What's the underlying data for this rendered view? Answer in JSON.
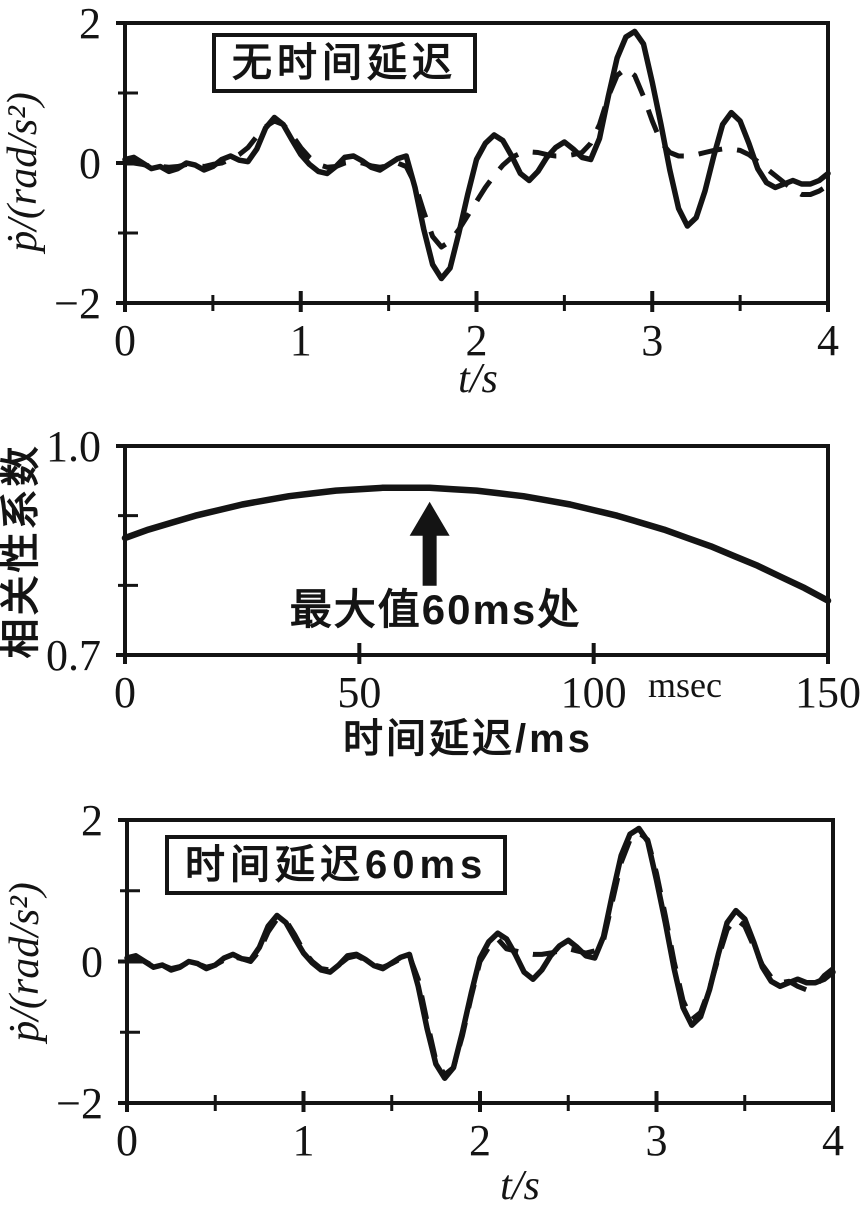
{
  "figure": {
    "background": "#ffffff",
    "ink": "#141414"
  },
  "chart_data": [
    {
      "id": "top-response",
      "type": "line",
      "title_box": "无时间延迟",
      "xlabel": "t/s",
      "ylabel": "ṗ/(rad/s²)",
      "xlim": [
        0,
        4
      ],
      "ylim": [
        -2,
        2
      ],
      "xticks": [
        {
          "v": 0,
          "label": "0"
        },
        {
          "v": 1,
          "label": "1"
        },
        {
          "v": 2,
          "label": "2"
        },
        {
          "v": 3,
          "label": "3"
        },
        {
          "v": 4,
          "label": "4"
        }
      ],
      "xticks_minor": [
        0.5,
        1.5,
        2.5,
        3.5
      ],
      "yticks": [
        {
          "v": 2,
          "label": "2"
        },
        {
          "v": 0,
          "label": "0"
        },
        {
          "v": -2,
          "label": "−2"
        }
      ],
      "yticks_minor": [
        1,
        -1
      ],
      "grid": false,
      "x_start": 0,
      "x_step": 0.05,
      "series": [
        {
          "name": "measured-response",
          "style": "solid",
          "values": [
            0.05,
            0.08,
            0.0,
            -0.08,
            -0.05,
            -0.12,
            -0.08,
            0.0,
            -0.03,
            -0.1,
            -0.05,
            0.05,
            0.1,
            0.04,
            0.02,
            0.2,
            0.5,
            0.65,
            0.55,
            0.33,
            0.12,
            -0.02,
            -0.12,
            -0.15,
            -0.05,
            0.08,
            0.1,
            0.03,
            -0.06,
            -0.1,
            -0.02,
            0.06,
            0.1,
            -0.35,
            -0.95,
            -1.45,
            -1.65,
            -1.5,
            -1.0,
            -0.45,
            0.05,
            0.28,
            0.4,
            0.32,
            0.1,
            -0.15,
            -0.25,
            -0.12,
            0.08,
            0.22,
            0.3,
            0.2,
            0.08,
            0.05,
            0.35,
            0.95,
            1.5,
            1.8,
            1.88,
            1.7,
            1.15,
            0.55,
            -0.1,
            -0.65,
            -0.9,
            -0.78,
            -0.4,
            0.1,
            0.55,
            0.72,
            0.6,
            0.28,
            -0.08,
            -0.28,
            -0.35,
            -0.3,
            -0.25,
            -0.3,
            -0.3,
            -0.25,
            -0.15
          ]
        },
        {
          "name": "model-estimate-no-delay",
          "style": "dashed",
          "values": [
            0.0,
            0.0,
            -0.02,
            -0.05,
            -0.05,
            -0.06,
            -0.05,
            -0.02,
            -0.03,
            -0.05,
            -0.02,
            0.0,
            0.05,
            0.12,
            0.22,
            0.38,
            0.52,
            0.6,
            0.55,
            0.4,
            0.22,
            0.08,
            -0.02,
            -0.06,
            -0.05,
            0.0,
            0.02,
            0.0,
            -0.04,
            -0.06,
            -0.04,
            0.0,
            -0.05,
            -0.3,
            -0.7,
            -1.05,
            -1.2,
            -1.12,
            -0.95,
            -0.75,
            -0.55,
            -0.35,
            -0.18,
            -0.03,
            0.08,
            0.14,
            0.16,
            0.15,
            0.12,
            0.1,
            0.1,
            0.12,
            0.15,
            0.28,
            0.55,
            0.95,
            1.25,
            1.35,
            1.25,
            0.95,
            0.6,
            0.3,
            0.15,
            0.1,
            0.1,
            0.12,
            0.15,
            0.18,
            0.2,
            0.2,
            0.18,
            0.12,
            0.02,
            -0.08,
            -0.18,
            -0.28,
            -0.38,
            -0.45,
            -0.45,
            -0.4,
            -0.32
          ]
        }
      ]
    },
    {
      "id": "correlation",
      "type": "line",
      "xlabel": "时间延迟/ms",
      "ylabel": "相关性系数",
      "x_unit_note": "msec",
      "annotation": {
        "text": "最大值60ms处",
        "x": 65
      },
      "xlim": [
        0,
        150
      ],
      "ylim": [
        0.7,
        1.0
      ],
      "xticks": [
        {
          "v": 0,
          "label": "0"
        },
        {
          "v": 50,
          "label": "50"
        },
        {
          "v": 100,
          "label": "100"
        },
        {
          "v": 150,
          "label": "150"
        }
      ],
      "xticks_minor": [],
      "yticks": [
        {
          "v": 1.0,
          "label": "1.0"
        },
        {
          "v": 0.7,
          "label": "0.7"
        }
      ],
      "yticks_minor": [
        0.9,
        0.8
      ],
      "grid": false,
      "x_start": 0,
      "x_step": 5,
      "series": [
        {
          "name": "correlation-coefficient",
          "style": "heavy",
          "values": [
            0.868,
            0.88,
            0.89,
            0.9,
            0.908,
            0.916,
            0.922,
            0.928,
            0.932,
            0.936,
            0.938,
            0.94,
            0.94,
            0.94,
            0.938,
            0.936,
            0.932,
            0.928,
            0.922,
            0.916,
            0.908,
            0.9,
            0.89,
            0.88,
            0.868,
            0.856,
            0.842,
            0.828,
            0.812,
            0.796,
            0.778
          ]
        }
      ]
    },
    {
      "id": "bottom-response",
      "type": "line",
      "title_box": "时间延迟60ms",
      "xlabel": "t/s",
      "ylabel": "ṗ/(rad/s²)",
      "xlim": [
        0,
        4
      ],
      "ylim": [
        -2,
        2
      ],
      "xticks": [
        {
          "v": 0,
          "label": "0"
        },
        {
          "v": 1,
          "label": "1"
        },
        {
          "v": 2,
          "label": "2"
        },
        {
          "v": 3,
          "label": "3"
        },
        {
          "v": 4,
          "label": "4"
        }
      ],
      "xticks_minor": [
        0.5,
        1.5,
        2.5,
        3.5
      ],
      "yticks": [
        {
          "v": 2,
          "label": "2"
        },
        {
          "v": 0,
          "label": "0"
        },
        {
          "v": -2,
          "label": "−2"
        }
      ],
      "yticks_minor": [
        1,
        -1
      ],
      "grid": false,
      "x_start": 0,
      "x_step": 0.05,
      "series": [
        {
          "name": "measured-response",
          "style": "solid",
          "values": [
            0.05,
            0.08,
            0.0,
            -0.08,
            -0.05,
            -0.12,
            -0.08,
            0.0,
            -0.03,
            -0.1,
            -0.05,
            0.05,
            0.1,
            0.04,
            0.02,
            0.2,
            0.5,
            0.65,
            0.55,
            0.33,
            0.12,
            -0.02,
            -0.12,
            -0.15,
            -0.05,
            0.08,
            0.1,
            0.03,
            -0.06,
            -0.1,
            -0.02,
            0.06,
            0.1,
            -0.35,
            -0.95,
            -1.45,
            -1.65,
            -1.5,
            -1.0,
            -0.45,
            0.05,
            0.28,
            0.4,
            0.32,
            0.1,
            -0.15,
            -0.25,
            -0.12,
            0.08,
            0.22,
            0.3,
            0.2,
            0.08,
            0.05,
            0.35,
            0.95,
            1.5,
            1.8,
            1.88,
            1.7,
            1.15,
            0.55,
            -0.1,
            -0.65,
            -0.9,
            -0.78,
            -0.4,
            0.1,
            0.55,
            0.72,
            0.6,
            0.28,
            -0.08,
            -0.28,
            -0.35,
            -0.3,
            -0.25,
            -0.3,
            -0.3,
            -0.25,
            -0.15
          ]
        },
        {
          "name": "model-estimate-60ms-delay",
          "style": "dashed",
          "values": [
            0.02,
            0.05,
            0.0,
            -0.06,
            -0.05,
            -0.1,
            -0.07,
            -0.01,
            -0.03,
            -0.08,
            -0.05,
            0.02,
            0.07,
            0.04,
            0.0,
            0.15,
            0.42,
            0.6,
            0.58,
            0.38,
            0.15,
            0.0,
            -0.1,
            -0.12,
            -0.05,
            0.05,
            0.08,
            0.02,
            -0.05,
            -0.08,
            -0.03,
            0.04,
            0.08,
            -0.25,
            -0.85,
            -1.4,
            -1.6,
            -1.5,
            -1.05,
            -0.5,
            0.0,
            0.2,
            0.32,
            0.18,
            0.15,
            0.12,
            0.1,
            0.1,
            0.12,
            0.15,
            0.18,
            0.15,
            0.12,
            0.15,
            0.3,
            0.85,
            1.4,
            1.72,
            1.82,
            1.72,
            1.25,
            0.65,
            0.0,
            -0.55,
            -0.82,
            -0.72,
            -0.38,
            0.05,
            0.45,
            0.6,
            0.5,
            0.22,
            -0.05,
            -0.22,
            -0.3,
            -0.28,
            -0.35,
            -0.4,
            -0.35,
            -0.2,
            -0.1
          ]
        }
      ]
    }
  ]
}
